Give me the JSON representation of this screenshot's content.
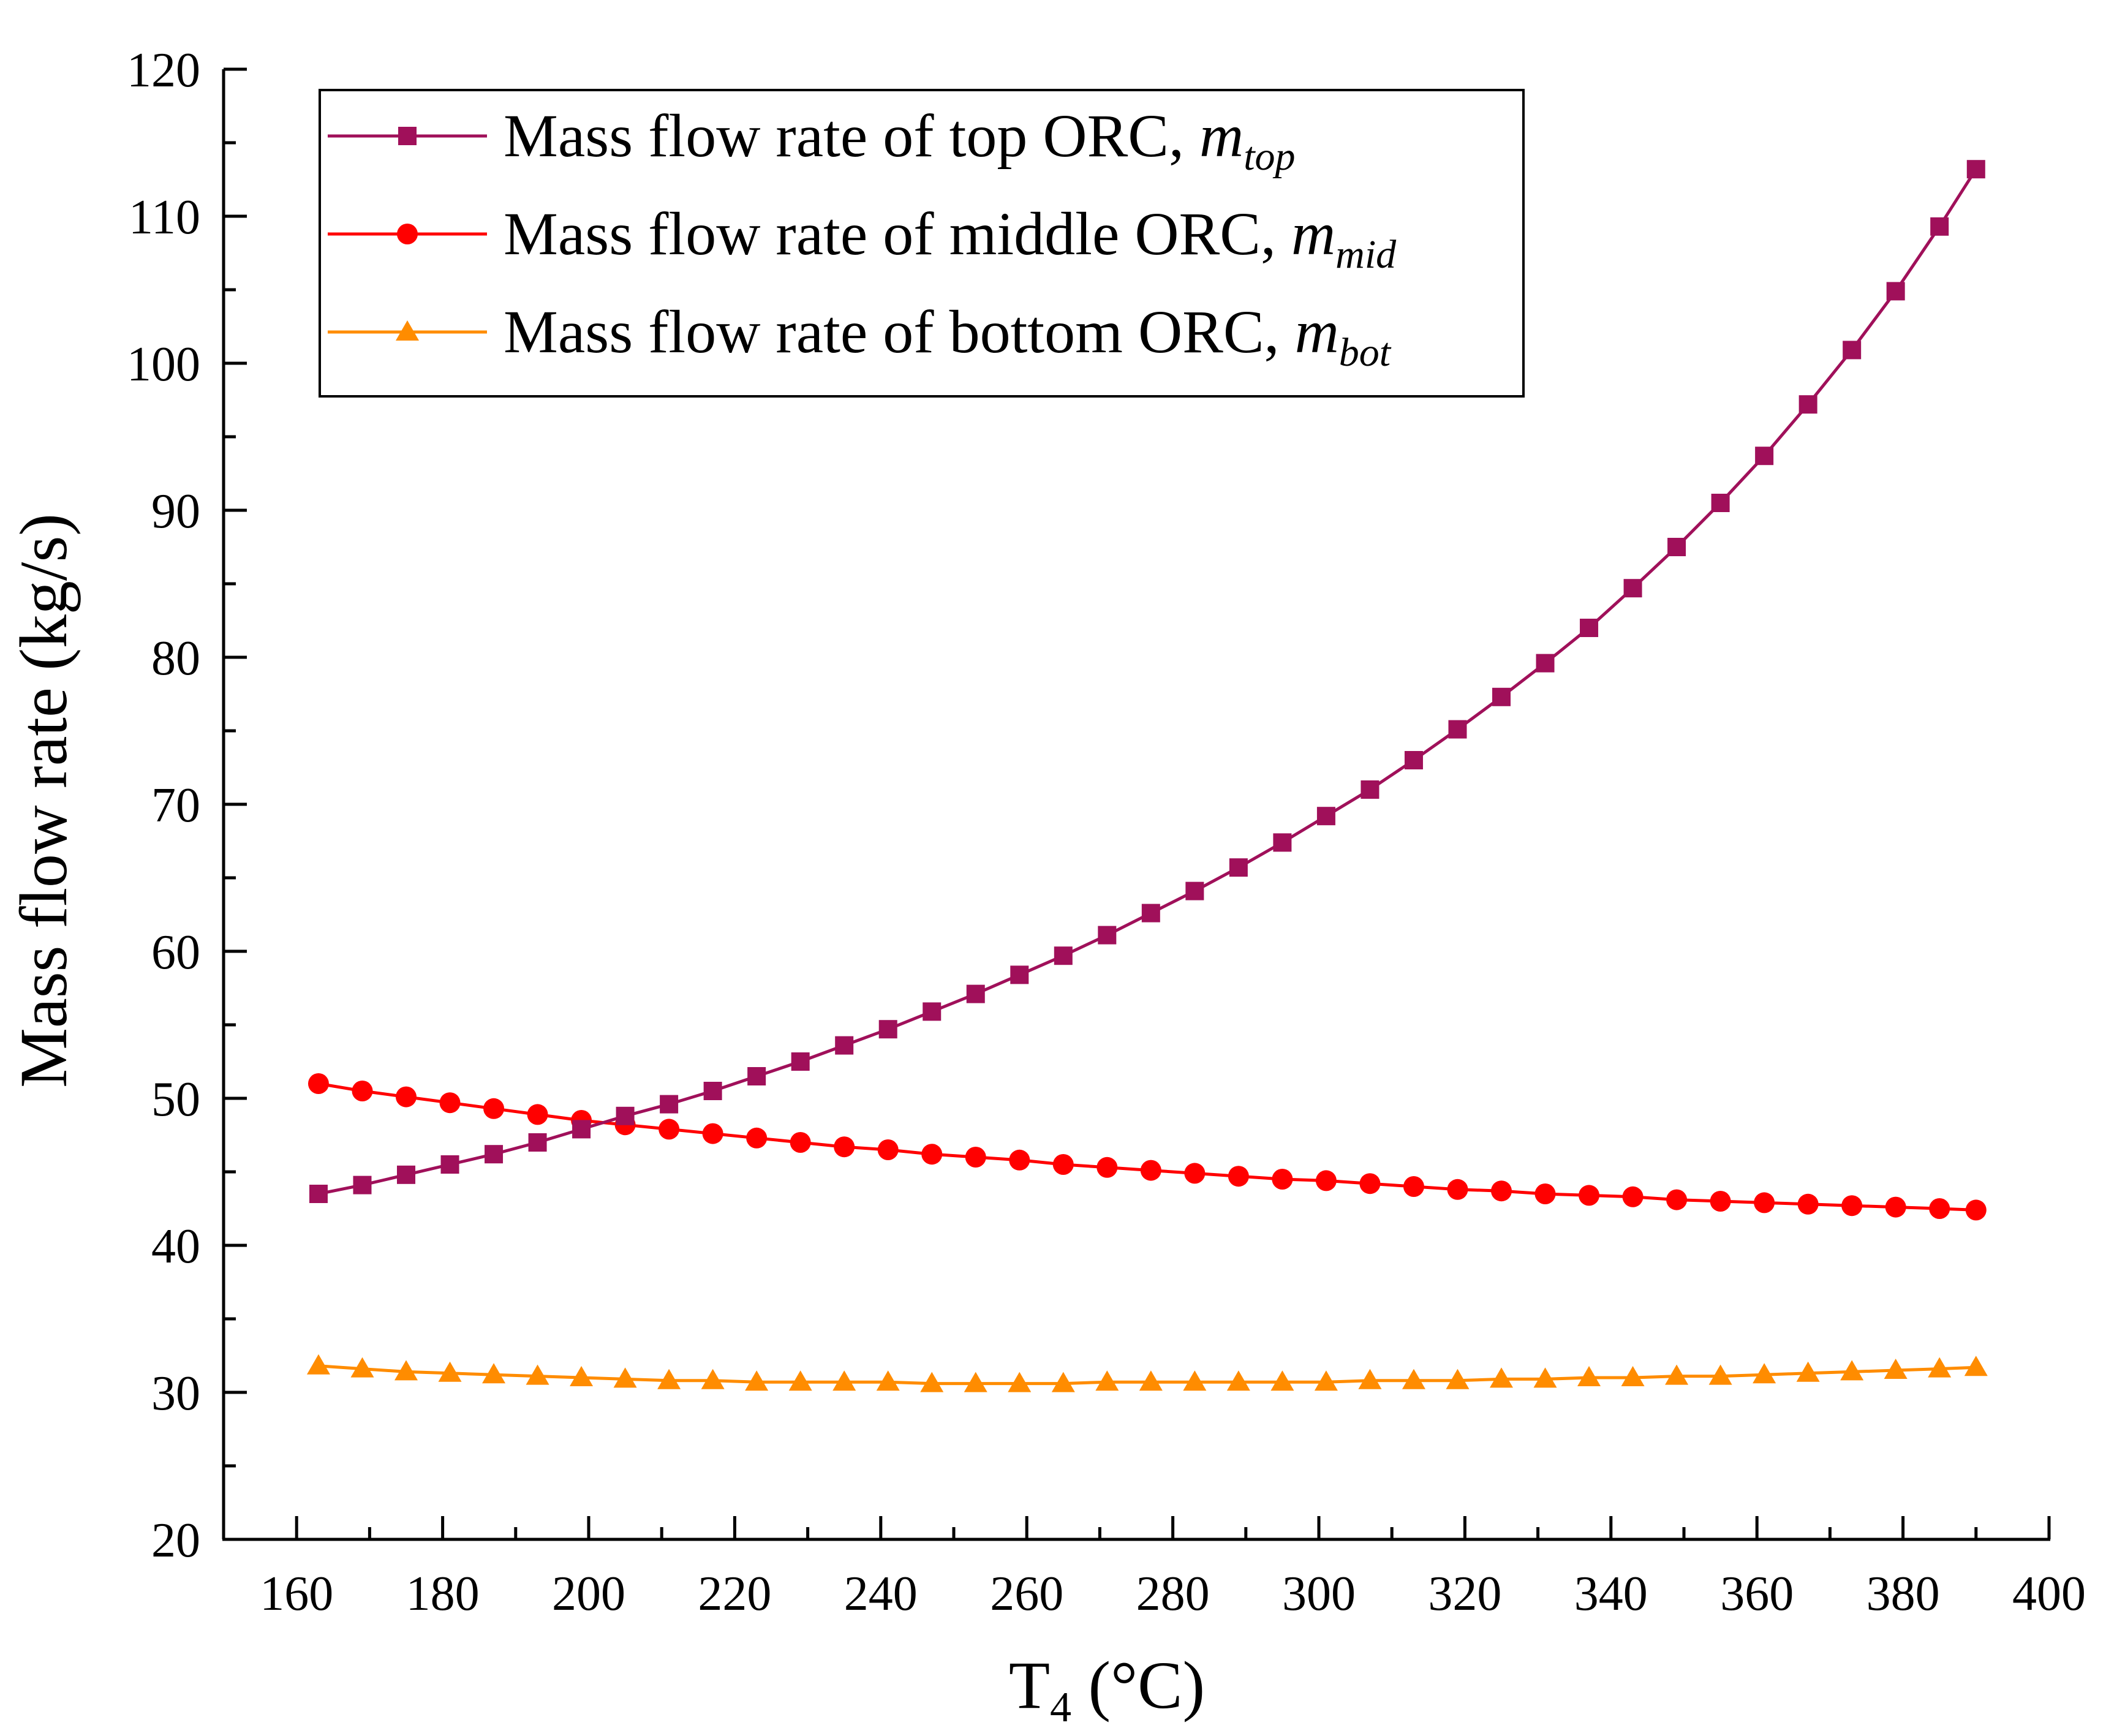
{
  "chart_data": {
    "type": "line",
    "xlabel": "T",
    "xlabel_sub": "4",
    "xlabel_unit": " (°C)",
    "ylabel": "Mass flow rate (kg/s)",
    "xlim": [
      150,
      400
    ],
    "ylim": [
      20,
      120
    ],
    "xticks": [
      160,
      180,
      200,
      220,
      240,
      260,
      280,
      300,
      320,
      340,
      360,
      380,
      400
    ],
    "yticks": [
      20,
      30,
      40,
      50,
      60,
      70,
      80,
      90,
      100,
      110,
      120
    ],
    "x": [
      163,
      169,
      175,
      181,
      187,
      193,
      199,
      205,
      211,
      217,
      223,
      229,
      235,
      241,
      247,
      253,
      259,
      265,
      271,
      277,
      283,
      289,
      295,
      301,
      307,
      313,
      319,
      325,
      331,
      337,
      343,
      349,
      355,
      361,
      367,
      373,
      379,
      385,
      390
    ],
    "series": [
      {
        "name": "Mass flow rate of top ORC, ",
        "sym": "m",
        "sub": "top",
        "color": "#a0105a",
        "marker": "square",
        "values": [
          43.5,
          44.1,
          44.8,
          45.5,
          46.2,
          47.0,
          47.9,
          48.8,
          49.6,
          50.5,
          51.5,
          52.5,
          53.6,
          54.7,
          55.9,
          57.1,
          58.4,
          59.7,
          61.1,
          62.6,
          64.1,
          65.7,
          67.4,
          69.2,
          71.0,
          73.0,
          75.1,
          77.3,
          79.6,
          82.0,
          84.7,
          87.5,
          90.5,
          93.7,
          97.2,
          100.9,
          104.9,
          109.3,
          113.2
        ]
      },
      {
        "name": "Mass flow rate of middle ORC, ",
        "sym": "m",
        "sub": "mid",
        "color": "#ff0000",
        "marker": "circle",
        "values": [
          51.0,
          50.5,
          50.1,
          49.7,
          49.3,
          48.9,
          48.5,
          48.2,
          47.9,
          47.6,
          47.3,
          47.0,
          46.7,
          46.5,
          46.2,
          46.0,
          45.8,
          45.5,
          45.3,
          45.1,
          44.9,
          44.7,
          44.5,
          44.4,
          44.2,
          44.0,
          43.8,
          43.7,
          43.5,
          43.4,
          43.3,
          43.1,
          43.0,
          42.9,
          42.8,
          42.7,
          42.6,
          42.5,
          42.4
        ]
      },
      {
        "name": "Mass flow rate of bottom ORC, ",
        "sym": "m",
        "sub": "bot",
        "color": "#ff8c00",
        "marker": "triangle",
        "values": [
          31.8,
          31.6,
          31.4,
          31.3,
          31.2,
          31.1,
          31.0,
          30.9,
          30.8,
          30.8,
          30.7,
          30.7,
          30.7,
          30.7,
          30.6,
          30.6,
          30.6,
          30.6,
          30.7,
          30.7,
          30.7,
          30.7,
          30.7,
          30.7,
          30.8,
          30.8,
          30.8,
          30.9,
          30.9,
          31.0,
          31.0,
          31.1,
          31.1,
          31.2,
          31.3,
          31.4,
          31.5,
          31.6,
          31.7
        ]
      }
    ]
  }
}
